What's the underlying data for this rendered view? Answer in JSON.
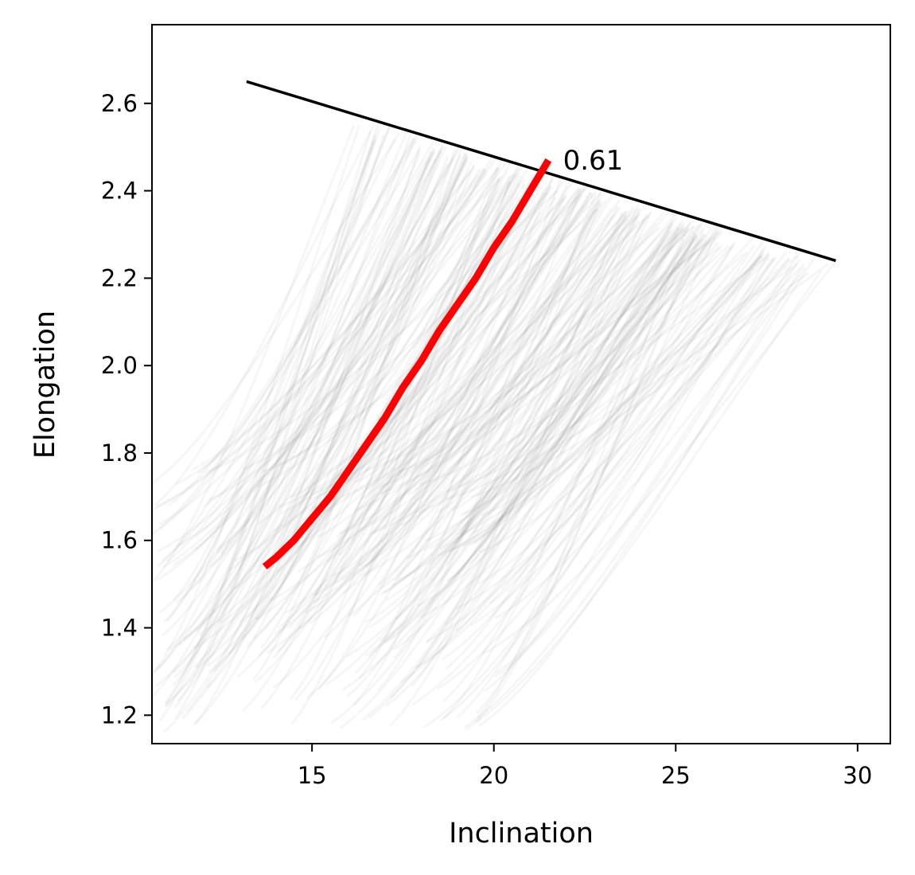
{
  "chart_data": {
    "type": "line",
    "title": "",
    "xlabel": "Inclination",
    "ylabel": "Elongation",
    "xlim": [
      10.6,
      30.9
    ],
    "ylim": [
      1.135,
      2.78
    ],
    "x_ticks": [
      15,
      20,
      25,
      30
    ],
    "y_ticks": [
      1.2,
      1.4,
      1.6,
      1.8,
      2.0,
      2.2,
      2.4,
      2.6
    ],
    "x_tick_labels": [
      "15",
      "20",
      "25",
      "30"
    ],
    "y_tick_labels": [
      "1.2",
      "1.4",
      "1.6",
      "1.8",
      "2.0",
      "2.2",
      "2.4",
      "2.6"
    ],
    "grid": false,
    "annotation": {
      "text": "0.61",
      "x": 21.9,
      "y": 2.47
    },
    "series": [
      {
        "role": "boundary",
        "color": "#000000",
        "x": [
          13.2,
          29.4
        ],
        "y": [
          2.65,
          2.24
        ]
      },
      {
        "role": "highlight",
        "color": "#ff0000",
        "x": [
          13.7,
          14.0,
          14.5,
          15.0,
          15.5,
          16.0,
          16.5,
          17.0,
          17.5,
          18.0,
          18.5,
          19.0,
          19.5,
          20.0,
          20.5,
          21.0,
          21.5
        ],
        "y": [
          1.54,
          1.56,
          1.6,
          1.65,
          1.7,
          1.76,
          1.82,
          1.88,
          1.95,
          2.01,
          2.08,
          2.14,
          2.2,
          2.27,
          2.33,
          2.4,
          2.47
        ]
      }
    ],
    "background_trajectories": {
      "color": "#808080",
      "opacity": 0.07,
      "count": 260
    }
  }
}
